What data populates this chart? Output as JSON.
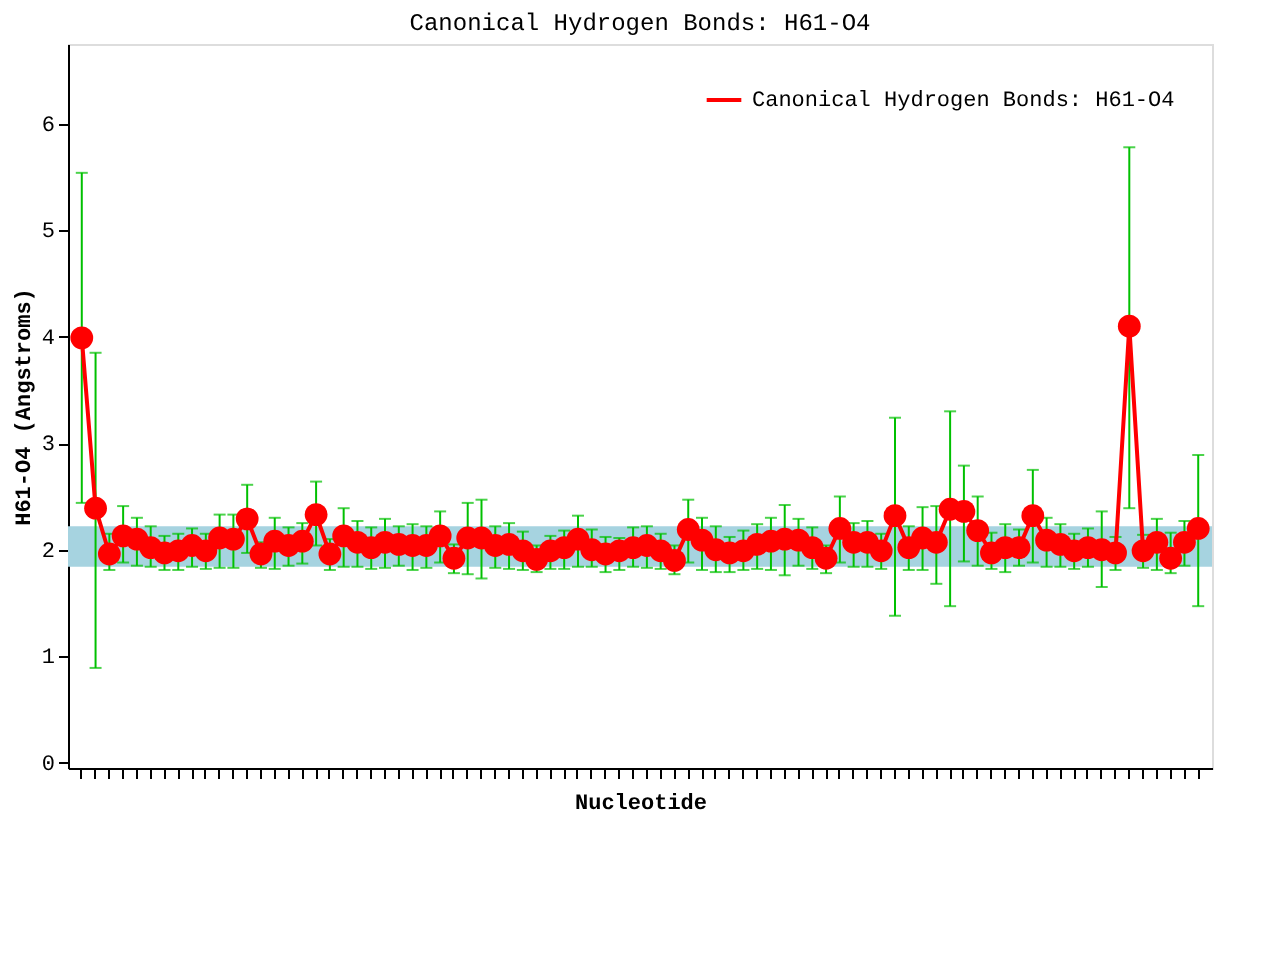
{
  "chart_data": {
    "type": "line",
    "title": "Canonical Hydrogen Bonds: H61-O4",
    "xlabel": "Nucleotide",
    "ylabel": "H61-O4 (Angstroms)",
    "categories": [
      null,
      null,
      null,
      null,
      null,
      null,
      null,
      null,
      null,
      null,
      null,
      null,
      null,
      null,
      null,
      null,
      null,
      null,
      null,
      null,
      null,
      null,
      null,
      null,
      null,
      null,
      null,
      null,
      null,
      null,
      null,
      null,
      null,
      null,
      null,
      null,
      null,
      null,
      null,
      null,
      null,
      null,
      null,
      null,
      null,
      null,
      null,
      null,
      null,
      null,
      null,
      null,
      null,
      null,
      null,
      null,
      null,
      null,
      null,
      null,
      null,
      null,
      null,
      null,
      null,
      null,
      null,
      null,
      null,
      null,
      null,
      null,
      null,
      null,
      null,
      null,
      null,
      null,
      null,
      null,
      null,
      null
    ],
    "series": [
      {
        "name": "Canonical Hydrogen Bonds: H61-O4",
        "color": "#ff0000",
        "values": [
          3.99,
          2.39,
          1.96,
          2.13,
          2.1,
          2.02,
          1.97,
          1.99,
          2.04,
          1.99,
          2.11,
          2.1,
          2.29,
          1.96,
          2.08,
          2.04,
          2.08,
          2.33,
          1.96,
          2.13,
          2.07,
          2.02,
          2.07,
          2.05,
          2.04,
          2.04,
          2.13,
          1.92,
          2.11,
          2.11,
          2.04,
          2.05,
          1.99,
          1.91,
          1.99,
          2.02,
          2.1,
          2.0,
          1.96,
          1.99,
          2.02,
          2.04,
          1.99,
          1.9,
          2.19,
          2.09,
          2.0,
          1.97,
          1.99,
          2.05,
          2.08,
          2.1,
          2.09,
          2.02,
          1.92,
          2.2,
          2.07,
          2.07,
          1.99,
          2.32,
          2.02,
          2.11,
          2.07,
          2.38,
          2.36,
          2.18,
          1.97,
          2.02,
          2.02,
          2.32,
          2.09,
          2.05,
          1.99,
          2.02,
          2.0,
          1.97,
          4.1,
          1.99,
          2.07,
          1.92,
          2.07,
          2.2
        ],
        "errors": [
          [
            2.44,
            5.54
          ],
          [
            0.89,
            3.85
          ],
          [
            1.81,
            2.15
          ],
          [
            1.88,
            2.41
          ],
          [
            1.85,
            2.3
          ],
          [
            1.84,
            2.22
          ],
          [
            1.81,
            2.13
          ],
          [
            1.81,
            2.15
          ],
          [
            1.84,
            2.2
          ],
          [
            1.82,
            2.15
          ],
          [
            1.83,
            2.33
          ],
          [
            1.83,
            2.33
          ],
          [
            1.97,
            2.61
          ],
          [
            1.83,
            2.07
          ],
          [
            1.82,
            2.3
          ],
          [
            1.85,
            2.21
          ],
          [
            1.87,
            2.25
          ],
          [
            2.04,
            2.64
          ],
          [
            1.81,
            2.1
          ],
          [
            1.84,
            2.39
          ],
          [
            1.84,
            2.27
          ],
          [
            1.82,
            2.21
          ],
          [
            1.83,
            2.29
          ],
          [
            1.85,
            2.22
          ],
          [
            1.81,
            2.24
          ],
          [
            1.83,
            2.22
          ],
          [
            1.88,
            2.36
          ],
          [
            1.78,
            2.05
          ],
          [
            1.77,
            2.44
          ],
          [
            1.73,
            2.47
          ],
          [
            1.83,
            2.22
          ],
          [
            1.82,
            2.25
          ],
          [
            1.81,
            2.17
          ],
          [
            1.79,
            2.04
          ],
          [
            1.82,
            2.13
          ],
          [
            1.82,
            2.18
          ],
          [
            1.84,
            2.32
          ],
          [
            1.84,
            2.19
          ],
          [
            1.79,
            2.12
          ],
          [
            1.81,
            2.11
          ],
          [
            1.84,
            2.21
          ],
          [
            1.83,
            2.22
          ],
          [
            1.82,
            2.15
          ],
          [
            1.77,
            2.04
          ],
          [
            1.88,
            2.47
          ],
          [
            1.81,
            2.3
          ],
          [
            1.79,
            2.22
          ],
          [
            1.79,
            2.12
          ],
          [
            1.81,
            2.18
          ],
          [
            1.82,
            2.24
          ],
          [
            1.81,
            2.3
          ],
          [
            1.76,
            2.42
          ],
          [
            1.85,
            2.29
          ],
          [
            1.82,
            2.21
          ],
          [
            1.78,
            2.04
          ],
          [
            1.88,
            2.5
          ],
          [
            1.84,
            2.25
          ],
          [
            1.84,
            2.27
          ],
          [
            1.82,
            2.15
          ],
          [
            1.38,
            3.24
          ],
          [
            1.81,
            2.22
          ],
          [
            1.81,
            2.4
          ],
          [
            1.68,
            2.41
          ],
          [
            1.47,
            3.3
          ],
          [
            1.89,
            2.79
          ],
          [
            1.85,
            2.5
          ],
          [
            1.82,
            2.16
          ],
          [
            1.79,
            2.24
          ],
          [
            1.85,
            2.19
          ],
          [
            1.88,
            2.75
          ],
          [
            1.84,
            2.3
          ],
          [
            1.84,
            2.24
          ],
          [
            1.82,
            2.15
          ],
          [
            1.84,
            2.2
          ],
          [
            1.65,
            2.36
          ],
          [
            1.81,
            2.12
          ],
          [
            2.39,
            5.78
          ],
          [
            1.83,
            2.14
          ],
          [
            1.81,
            2.29
          ],
          [
            1.78,
            2.16
          ],
          [
            1.85,
            2.27
          ],
          [
            1.47,
            2.89
          ]
        ]
      }
    ],
    "ylim": [
      -0.05,
      6.75
    ],
    "yticks": [
      0,
      1,
      2,
      3,
      4,
      5,
      6
    ],
    "bands": [
      {
        "axis": "y",
        "from": 1.84,
        "to": 2.22,
        "color": "#a6d3e0"
      }
    ],
    "legend": "top right",
    "marker": "circle",
    "line_style": "solid"
  }
}
